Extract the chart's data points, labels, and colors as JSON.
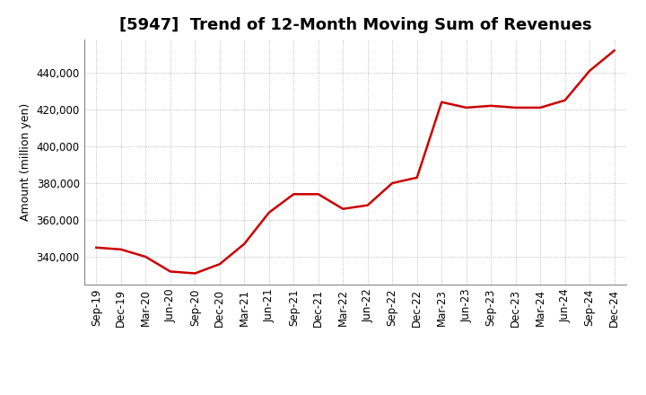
{
  "title": "[5947]  Trend of 12-Month Moving Sum of Revenues",
  "ylabel": "Amount (million yen)",
  "line_color": "#cc0000",
  "background_color": "#ffffff",
  "grid_color": "#aaaaaa",
  "x_labels": [
    "Sep-19",
    "Dec-19",
    "Mar-20",
    "Jun-20",
    "Sep-20",
    "Dec-20",
    "Mar-21",
    "Jun-21",
    "Sep-21",
    "Dec-21",
    "Mar-22",
    "Jun-22",
    "Sep-22",
    "Dec-22",
    "Mar-23",
    "Jun-23",
    "Sep-23",
    "Dec-23",
    "Mar-24",
    "Jun-24",
    "Sep-24",
    "Dec-24"
  ],
  "y_values": [
    345000,
    344000,
    340000,
    332000,
    331000,
    336000,
    347000,
    364000,
    374000,
    374000,
    366000,
    368000,
    380000,
    383000,
    424000,
    421000,
    422000,
    421000,
    421000,
    425000,
    441000,
    452000
  ],
  "ylim_min": 325000,
  "ylim_max": 458000,
  "yticks": [
    340000,
    360000,
    380000,
    400000,
    420000,
    440000
  ],
  "title_fontsize": 13,
  "label_fontsize": 9,
  "tick_fontsize": 8.5
}
